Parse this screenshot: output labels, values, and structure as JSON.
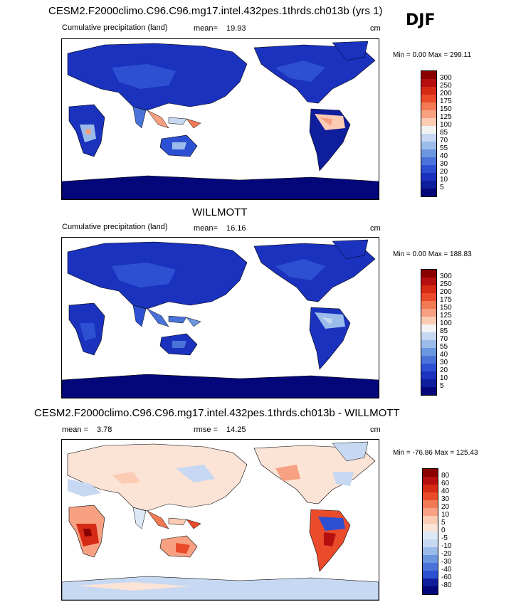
{
  "header": {
    "title": "CESM2.F2000climo.C96.C96.mg17.intel.432pes.1thrds.ch013b (yrs 1)",
    "season": "DJF"
  },
  "panels": [
    {
      "subtitle": "Cumulative precipitation (land)",
      "mean_label": "mean=",
      "mean_value": "19.93",
      "units": "cm",
      "minmax": "Min =   0.00 Max = 299.11",
      "colorbar": [
        "300",
        "250",
        "200",
        "175",
        "150",
        "125",
        "100",
        "85",
        "70",
        "55",
        "40",
        "30",
        "20",
        "10",
        "5"
      ],
      "colors": [
        "#8a0000",
        "#b50f0f",
        "#d62a15",
        "#ea4b2a",
        "#f27a55",
        "#f7a182",
        "#fbcbb3",
        "#f3f3f3",
        "#c7d8f2",
        "#9bbcea",
        "#6c97e0",
        "#4a73da",
        "#2d50d2",
        "#1a32be",
        "#0e1e9c",
        "#04077a"
      ]
    },
    {
      "title": "WILLMOTT",
      "subtitle": "Cumulative precipitation (land)",
      "mean_label": "mean=",
      "mean_value": "16.16",
      "units": "cm",
      "minmax": "Min =   0.00 Max = 188.83",
      "colorbar": [
        "300",
        "250",
        "200",
        "175",
        "150",
        "125",
        "100",
        "85",
        "70",
        "55",
        "40",
        "30",
        "20",
        "10",
        "5"
      ]
    },
    {
      "title": "CESM2.F2000climo.C96.C96.mg17.intel.432pes.1thrds.ch013b - WILLMOTT",
      "mean_label": "mean =",
      "mean_value": "3.78",
      "rmse_label": "rmse =",
      "rmse_value": "14.25",
      "units": "cm",
      "minmax": "Min = -76.86 Max = 125.43",
      "colorbar": [
        "80",
        "60",
        "40",
        "30",
        "20",
        "10",
        "5",
        "0",
        "-5",
        "-10",
        "-20",
        "-30",
        "-40",
        "-60",
        "-80"
      ],
      "colors": [
        "#8a0000",
        "#b50f0f",
        "#d62a15",
        "#ea4b2a",
        "#f27a55",
        "#f7a182",
        "#fbcbb3",
        "#fbe3d6",
        "#dde8f7",
        "#c7d8f2",
        "#9bbcea",
        "#6c97e0",
        "#4a73da",
        "#2d50d2",
        "#0e1e9c",
        "#04077a"
      ]
    }
  ]
}
